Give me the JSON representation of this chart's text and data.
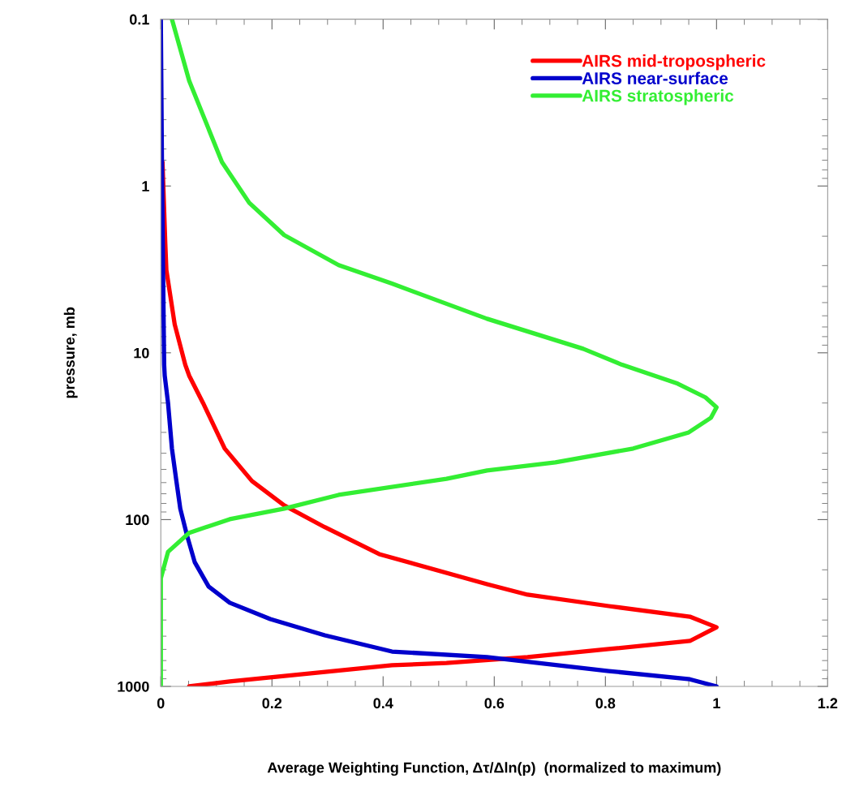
{
  "chart_data": {
    "type": "line",
    "xlabel": "Average Weighting Function, Δτ/Δln(p)  (normalized to maximum)",
    "ylabel": "pressure, mb",
    "log": "y",
    "xlim": [
      0,
      1.2
    ],
    "xticks": [
      0,
      0.2,
      0.4,
      0.6,
      0.8,
      1,
      1.2
    ],
    "ylim": [
      1000,
      0.1
    ],
    "yticks": [
      0.1,
      1,
      10,
      100,
      1000
    ],
    "legend": "top right",
    "grid": false,
    "series": [
      {
        "name": "AIRS mid-tropospheric",
        "color": "#ff0000",
        "x": [
          null,
          0.003,
          0.008,
          0.01,
          0.025,
          0.044,
          0.051,
          0.076,
          0.115,
          0.164,
          0.222,
          0.295,
          0.393,
          0.587,
          0.66,
          0.806,
          0.952,
          1.0,
          0.952,
          0.806,
          0.66,
          0.514,
          0.416,
          0.27,
          0.124,
          0.051
        ],
        "values": [
          null,
          0.72,
          2.2,
          3.19,
          6.76,
          11.8,
          13.7,
          20.0,
          37.5,
          58.7,
          82.2,
          111,
          161,
          244,
          282,
          330,
          382,
          442,
          534,
          597,
          668,
          723,
          747,
          835,
          935,
          1000
        ]
      },
      {
        "name": "AIRS near-surface",
        "color": "#0000cc",
        "x": [
          0,
          0.002,
          0.004,
          0.006,
          0.007,
          0.013,
          0.02,
          0.028,
          0.035,
          0.047,
          0.061,
          0.086,
          0.124,
          0.197,
          0.295,
          0.416,
          0.587,
          0.806,
          0.952,
          1.0
        ],
        "values": [
          0.1,
          0.72,
          3.19,
          11.8,
          13.7,
          20.0,
          37.5,
          58.7,
          85.9,
          124,
          180,
          252,
          315,
          395,
          494,
          618,
          668,
          809,
          906,
          1000
        ]
      },
      {
        "name": "AIRS stratospheric",
        "color": "#33ee33",
        "x": [
          0.02,
          0.051,
          0.11,
          0.159,
          0.222,
          0.32,
          0.416,
          0.587,
          0.76,
          0.83,
          0.93,
          0.98,
          1.0,
          0.99,
          0.95,
          0.85,
          0.71,
          0.587,
          0.514,
          0.32,
          0.222,
          0.124,
          0.051,
          0.013,
          0.0,
          0.0
        ],
        "values": [
          0.1,
          0.234,
          0.718,
          1.26,
          1.97,
          2.98,
          3.85,
          6.25,
          9.46,
          11.8,
          15.3,
          18.5,
          21.2,
          24.5,
          30.0,
          37.5,
          45.4,
          50.8,
          56.9,
          71.1,
          85.9,
          99.5,
          120,
          156,
          225,
          1000
        ]
      }
    ]
  }
}
